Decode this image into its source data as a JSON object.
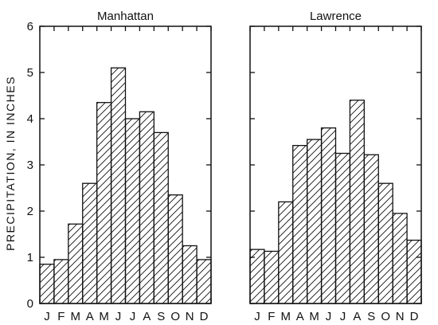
{
  "chart_data": [
    {
      "type": "bar",
      "title": "Manhattan",
      "categories": [
        "J",
        "F",
        "M",
        "A",
        "M",
        "J",
        "J",
        "A",
        "S",
        "O",
        "N",
        "D"
      ],
      "values": [
        0.85,
        0.95,
        1.72,
        2.6,
        4.35,
        5.1,
        4.0,
        4.15,
        3.7,
        2.35,
        1.25,
        0.95
      ],
      "xlabel": "",
      "ylabel": "PRECIPITATION, IN INCHES",
      "ylim": [
        0,
        6
      ],
      "yticks": [
        0,
        1,
        2,
        3,
        4,
        5,
        6
      ],
      "grid": false,
      "fill": "diagonal-hatch"
    },
    {
      "type": "bar",
      "title": "Lawrence",
      "categories": [
        "J",
        "F",
        "M",
        "A",
        "M",
        "J",
        "J",
        "A",
        "S",
        "O",
        "N",
        "D"
      ],
      "values": [
        1.17,
        1.13,
        2.2,
        3.42,
        3.55,
        3.8,
        3.25,
        4.4,
        3.22,
        2.6,
        1.95,
        1.37
      ],
      "xlabel": "",
      "ylabel": "",
      "ylim": [
        0,
        6
      ],
      "yticks": [],
      "grid": false,
      "fill": "diagonal-hatch"
    }
  ],
  "colors": {
    "ink": "#111111",
    "background": "#ffffff"
  }
}
